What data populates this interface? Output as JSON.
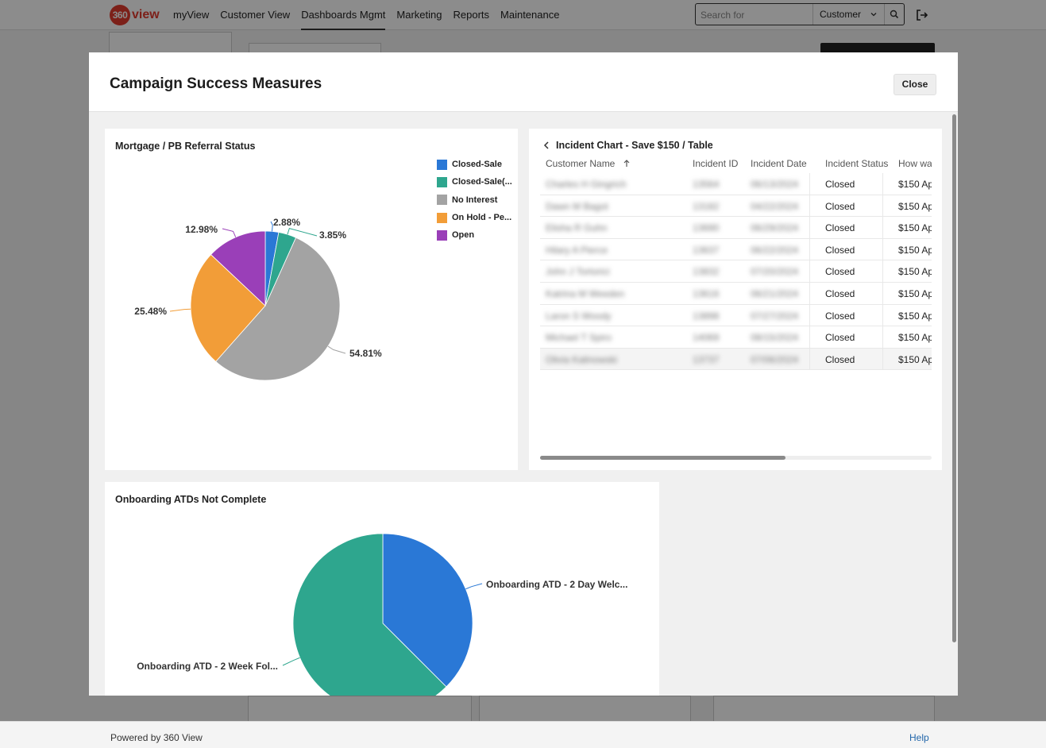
{
  "app": {
    "logo_number": "360",
    "logo_word": "view",
    "nav": [
      "myView",
      "Customer View",
      "Dashboards Mgmt",
      "Marketing",
      "Reports",
      "Maintenance"
    ],
    "active_nav": "Dashboards Mgmt",
    "search_placeholder": "Search for",
    "search_type": "Customer",
    "footer_text": "Powered by 360 View",
    "help_link": "Help"
  },
  "modal": {
    "title": "Campaign Success Measures",
    "close_label": "Close"
  },
  "referral_chart": {
    "title": "Mortgage / PB Referral Status",
    "legend": [
      "Closed-Sale",
      "Closed-Sale(...",
      "No Interest",
      "On Hold - Pe...",
      "Open"
    ],
    "chart_data": {
      "type": "pie",
      "title": "Mortgage / PB Referral Status",
      "slices": [
        {
          "name": "Closed-Sale",
          "value": 2.88,
          "label": "2.88%",
          "color": "#2a78d6"
        },
        {
          "name": "Closed-Sale(...",
          "value": 3.85,
          "label": "3.85%",
          "color": "#2ea68e"
        },
        {
          "name": "No Interest",
          "value": 54.81,
          "label": "54.81%",
          "color": "#a3a3a3"
        },
        {
          "name": "On Hold - Pe...",
          "value": 25.48,
          "label": "25.48%",
          "color": "#f29d38"
        },
        {
          "name": "Open",
          "value": 12.98,
          "label": "12.98%",
          "color": "#9a3fb8"
        }
      ],
      "legend_position": "top-right"
    }
  },
  "incident_table": {
    "title": "Incident Chart - Save $150 / Table",
    "columns": [
      "Customer Name",
      "Incident ID",
      "Incident Date",
      "Incident Status",
      "How wa"
    ],
    "rows": [
      {
        "name": "Charles H Gingrich",
        "id": "13564",
        "date": "06/13/2024",
        "status": "Closed",
        "how": "$150 Ap"
      },
      {
        "name": "Dawn M Bagot",
        "id": "13182",
        "date": "04/22/2024",
        "status": "Closed",
        "how": "$150 Ap"
      },
      {
        "name": "Elisha R Guhn",
        "id": "13690",
        "date": "06/29/2024",
        "status": "Closed",
        "how": "$150 Ap"
      },
      {
        "name": "Hilary A Pierce",
        "id": "13637",
        "date": "06/22/2024",
        "status": "Closed",
        "how": "$150 Ap"
      },
      {
        "name": "John J Tortorici",
        "id": "13832",
        "date": "07/20/2024",
        "status": "Closed",
        "how": "$150 Ap"
      },
      {
        "name": "Katrina M Weeden",
        "id": "13616",
        "date": "06/21/2024",
        "status": "Closed",
        "how": "$150 Ap"
      },
      {
        "name": "Laron S Woody",
        "id": "13898",
        "date": "07/27/2024",
        "status": "Closed",
        "how": "$150 Ap"
      },
      {
        "name": "Michael T Spiro",
        "id": "14069",
        "date": "08/15/2024",
        "status": "Closed",
        "how": "$150 Ap"
      },
      {
        "name": "Olivia Kalinowski",
        "id": "13737",
        "date": "07/06/2024",
        "status": "Closed",
        "how": "$150 Ap"
      }
    ]
  },
  "onboarding_chart": {
    "title": "Onboarding ATDs Not Complete",
    "chart_data": {
      "type": "pie",
      "title": "Onboarding ATDs Not Complete",
      "slices": [
        {
          "name": "Onboarding ATD - 2 Day Welc...",
          "value": 37.5,
          "label": "Onboarding ATD - 2 Day Welc...",
          "color": "#2a78d6"
        },
        {
          "name": "Onboarding ATD - 2 Week Fol...",
          "value": 62.5,
          "label": "Onboarding ATD - 2 Week Fol...",
          "color": "#2ea68e"
        }
      ]
    }
  },
  "colors": {
    "brand": "#e23b2f",
    "help_link": "#2266aa"
  }
}
